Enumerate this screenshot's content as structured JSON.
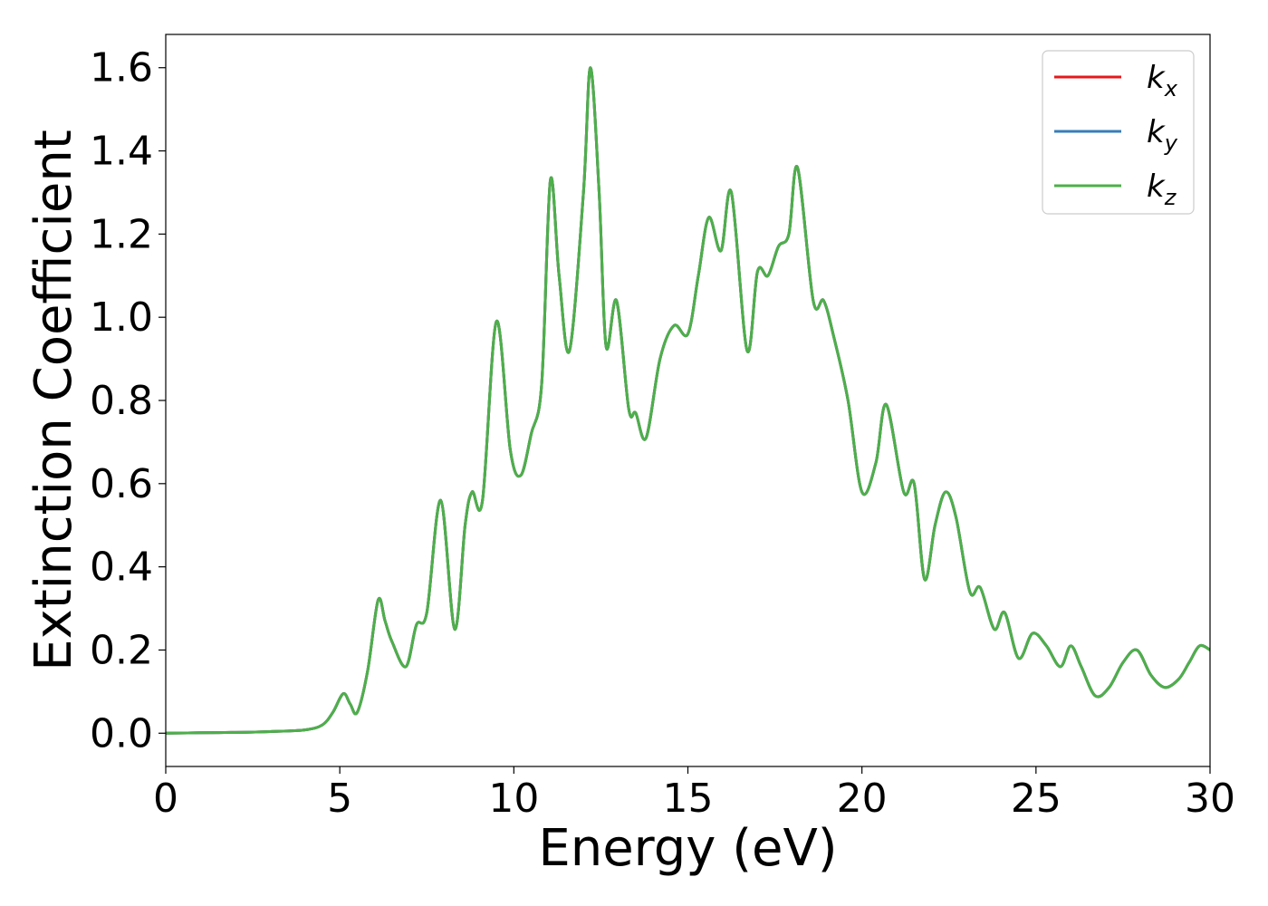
{
  "chart_data": {
    "type": "line",
    "xlabel": "Energy (eV)",
    "ylabel": "Extinction Coefficient",
    "xlim": [
      0,
      30
    ],
    "ylim": [
      -0.08,
      1.68
    ],
    "xticks": [
      0,
      5,
      10,
      15,
      20,
      25,
      30
    ],
    "yticks": [
      0.0,
      0.2,
      0.4,
      0.6,
      0.8,
      1.0,
      1.2,
      1.4,
      1.6
    ],
    "xtick_labels": [
      "0",
      "5",
      "10",
      "15",
      "20",
      "25",
      "30"
    ],
    "ytick_labels": [
      "0.0",
      "0.2",
      "0.4",
      "0.6",
      "0.8",
      "1.0",
      "1.2",
      "1.4",
      "1.6"
    ],
    "grid": false,
    "legend_position": "top-right",
    "x": [
      0,
      1,
      2,
      3,
      4,
      4.5,
      4.8,
      5.1,
      5.3,
      5.5,
      5.8,
      6.1,
      6.3,
      6.5,
      6.9,
      7.2,
      7.5,
      7.9,
      8.3,
      8.6,
      8.8,
      9.1,
      9.5,
      9.9,
      10.2,
      10.5,
      10.8,
      11.05,
      11.3,
      11.6,
      12.0,
      12.2,
      12.45,
      12.65,
      12.95,
      13.3,
      13.5,
      13.8,
      14.2,
      14.6,
      15.0,
      15.3,
      15.6,
      15.95,
      16.25,
      16.7,
      17.0,
      17.3,
      17.6,
      17.9,
      18.15,
      18.6,
      18.9,
      19.2,
      19.6,
      20.0,
      20.4,
      20.7,
      21.2,
      21.5,
      21.8,
      22.1,
      22.4,
      22.7,
      23.1,
      23.4,
      23.8,
      24.1,
      24.5,
      24.9,
      25.3,
      25.7,
      26.0,
      26.3,
      26.7,
      27.1,
      27.5,
      27.9,
      28.3,
      28.7,
      29.1,
      29.4,
      29.7,
      30.0
    ],
    "series": [
      {
        "name": "k_x",
        "color": "#e41a1c",
        "values": [
          0.0,
          0.001,
          0.002,
          0.004,
          0.008,
          0.02,
          0.05,
          0.095,
          0.07,
          0.05,
          0.15,
          0.32,
          0.27,
          0.22,
          0.16,
          0.26,
          0.29,
          0.56,
          0.25,
          0.5,
          0.58,
          0.56,
          0.99,
          0.68,
          0.62,
          0.72,
          0.84,
          1.33,
          1.1,
          0.92,
          1.3,
          1.6,
          1.3,
          0.93,
          1.04,
          0.78,
          0.77,
          0.71,
          0.9,
          0.98,
          0.96,
          1.1,
          1.24,
          1.16,
          1.3,
          0.92,
          1.11,
          1.1,
          1.17,
          1.2,
          1.36,
          1.04,
          1.04,
          0.95,
          0.8,
          0.58,
          0.65,
          0.79,
          0.58,
          0.6,
          0.37,
          0.5,
          0.58,
          0.52,
          0.34,
          0.35,
          0.25,
          0.29,
          0.18,
          0.24,
          0.21,
          0.16,
          0.21,
          0.16,
          0.09,
          0.11,
          0.17,
          0.2,
          0.14,
          0.11,
          0.13,
          0.17,
          0.21,
          0.2
        ]
      },
      {
        "name": "k_y",
        "color": "#377eb8",
        "values": [
          0.0,
          0.001,
          0.002,
          0.004,
          0.008,
          0.02,
          0.05,
          0.095,
          0.07,
          0.05,
          0.15,
          0.32,
          0.27,
          0.22,
          0.16,
          0.26,
          0.29,
          0.56,
          0.25,
          0.5,
          0.58,
          0.56,
          0.99,
          0.68,
          0.62,
          0.72,
          0.84,
          1.33,
          1.1,
          0.92,
          1.3,
          1.6,
          1.3,
          0.93,
          1.04,
          0.78,
          0.77,
          0.71,
          0.9,
          0.98,
          0.96,
          1.1,
          1.24,
          1.16,
          1.3,
          0.92,
          1.11,
          1.1,
          1.17,
          1.2,
          1.36,
          1.04,
          1.04,
          0.95,
          0.8,
          0.58,
          0.65,
          0.79,
          0.58,
          0.6,
          0.37,
          0.5,
          0.58,
          0.52,
          0.34,
          0.35,
          0.25,
          0.29,
          0.18,
          0.24,
          0.21,
          0.16,
          0.21,
          0.16,
          0.09,
          0.11,
          0.17,
          0.2,
          0.14,
          0.11,
          0.13,
          0.17,
          0.21,
          0.2
        ]
      },
      {
        "name": "k_z",
        "color": "#4daf4a",
        "values": [
          0.0,
          0.001,
          0.002,
          0.004,
          0.008,
          0.02,
          0.05,
          0.095,
          0.07,
          0.05,
          0.15,
          0.32,
          0.27,
          0.22,
          0.16,
          0.26,
          0.29,
          0.56,
          0.25,
          0.5,
          0.58,
          0.56,
          0.99,
          0.68,
          0.62,
          0.72,
          0.84,
          1.33,
          1.1,
          0.92,
          1.3,
          1.6,
          1.3,
          0.93,
          1.04,
          0.78,
          0.77,
          0.71,
          0.9,
          0.98,
          0.96,
          1.1,
          1.24,
          1.16,
          1.3,
          0.92,
          1.11,
          1.1,
          1.17,
          1.2,
          1.36,
          1.04,
          1.04,
          0.95,
          0.8,
          0.58,
          0.65,
          0.79,
          0.58,
          0.6,
          0.37,
          0.5,
          0.58,
          0.52,
          0.34,
          0.35,
          0.25,
          0.29,
          0.18,
          0.24,
          0.21,
          0.16,
          0.21,
          0.16,
          0.09,
          0.11,
          0.17,
          0.2,
          0.14,
          0.11,
          0.13,
          0.17,
          0.21,
          0.2
        ]
      }
    ],
    "legend": [
      {
        "base": "k",
        "sub": "x",
        "color": "#e41a1c"
      },
      {
        "base": "k",
        "sub": "y",
        "color": "#377eb8"
      },
      {
        "base": "k",
        "sub": "z",
        "color": "#4daf4a"
      }
    ]
  }
}
